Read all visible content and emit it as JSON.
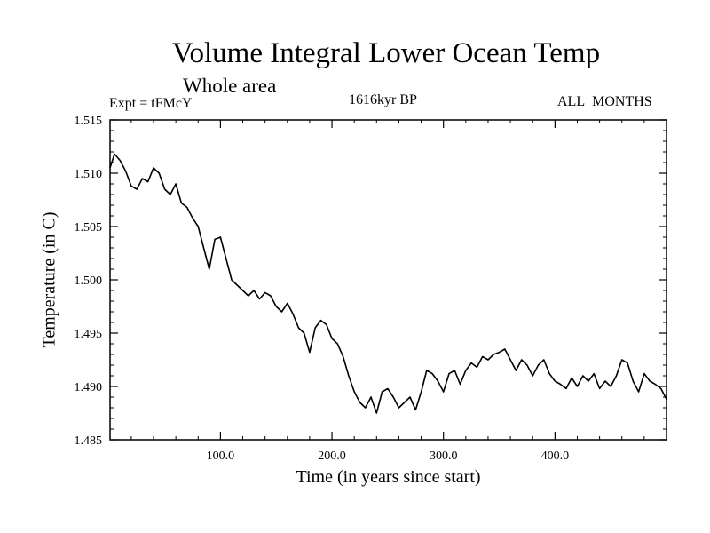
{
  "header": {
    "title": "Volume Integral Lower Ocean Temp",
    "subtitle": "Whole area",
    "experiment": "Expt = tFMcY",
    "period": "1616kyr BP",
    "months": "ALL_MONTHS"
  },
  "chart_data": {
    "type": "line",
    "title": "Volume Integral Lower Ocean Temp",
    "xlabel": "Time (in years since start)",
    "ylabel": "Temperature (in C)",
    "xlim": [
      1,
      500
    ],
    "ylim": [
      1.485,
      1.515
    ],
    "xticks": [
      100,
      200,
      300,
      400
    ],
    "xtick_labels": [
      "100.0",
      "200.0",
      "300.0",
      "400.0"
    ],
    "yticks": [
      1.485,
      1.49,
      1.495,
      1.5,
      1.505,
      1.51,
      1.515
    ],
    "ytick_labels": [
      "1.485",
      "1.490",
      "1.495",
      "1.500",
      "1.505",
      "1.510",
      "1.515"
    ],
    "grid": false,
    "series": [
      {
        "name": "Volume Integral Lower Ocean Temp",
        "x": [
          1,
          5,
          10,
          15,
          20,
          25,
          30,
          35,
          40,
          45,
          50,
          55,
          60,
          65,
          70,
          75,
          80,
          85,
          90,
          95,
          100,
          105,
          110,
          115,
          120,
          125,
          130,
          135,
          140,
          145,
          150,
          155,
          160,
          165,
          170,
          175,
          180,
          185,
          190,
          195,
          200,
          205,
          210,
          215,
          220,
          225,
          230,
          235,
          240,
          245,
          250,
          255,
          260,
          265,
          270,
          275,
          280,
          285,
          290,
          295,
          300,
          305,
          310,
          315,
          320,
          325,
          330,
          335,
          340,
          345,
          350,
          355,
          360,
          365,
          370,
          375,
          380,
          385,
          390,
          395,
          400,
          405,
          410,
          415,
          420,
          425,
          430,
          435,
          440,
          445,
          450,
          455,
          460,
          465,
          470,
          475,
          480,
          485,
          490,
          495,
          500
        ],
        "y": [
          1.5105,
          1.5118,
          1.5112,
          1.5102,
          1.5088,
          1.5085,
          1.5095,
          1.5092,
          1.5105,
          1.51,
          1.5085,
          1.508,
          1.509,
          1.5072,
          1.5068,
          1.5058,
          1.505,
          1.503,
          1.501,
          1.5038,
          1.504,
          1.502,
          1.5,
          1.4995,
          1.499,
          1.4985,
          1.499,
          1.4982,
          1.4988,
          1.4985,
          1.4975,
          1.497,
          1.4978,
          1.4968,
          1.4955,
          1.495,
          1.4932,
          1.4955,
          1.4962,
          1.4958,
          1.4945,
          1.494,
          1.4928,
          1.491,
          1.4895,
          1.4885,
          1.488,
          1.489,
          1.4875,
          1.4895,
          1.4898,
          1.489,
          1.488,
          1.4885,
          1.489,
          1.4878,
          1.4895,
          1.4915,
          1.4912,
          1.4905,
          1.4895,
          1.4912,
          1.4915,
          1.4902,
          1.4915,
          1.4922,
          1.4918,
          1.4928,
          1.4925,
          1.493,
          1.4932,
          1.4935,
          1.4925,
          1.4915,
          1.4925,
          1.492,
          1.491,
          1.492,
          1.4925,
          1.4912,
          1.4905,
          1.4902,
          1.4898,
          1.4908,
          1.49,
          1.491,
          1.4905,
          1.4912,
          1.4898,
          1.4905,
          1.49,
          1.491,
          1.4925,
          1.4922,
          1.4905,
          1.4895,
          1.4912,
          1.4905,
          1.4902,
          1.4898,
          1.4888
        ]
      }
    ]
  }
}
